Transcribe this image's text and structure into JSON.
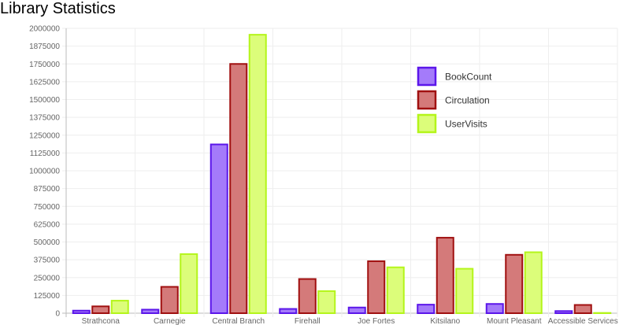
{
  "page": {
    "title": "Library Statistics"
  },
  "chart_data": {
    "type": "bar",
    "title": "Library Statistics",
    "xlabel": "",
    "ylabel": "",
    "ylim": [
      0,
      2000000
    ],
    "yticks": [
      0,
      125000,
      250000,
      375000,
      500000,
      625000,
      750000,
      875000,
      1000000,
      1125000,
      1250000,
      1375000,
      1500000,
      1625000,
      1750000,
      1875000,
      2000000
    ],
    "categories": [
      "Strathcona",
      "Carnegie",
      "Central Branch",
      "Firehall",
      "Joe Fortes",
      "Kitsilano",
      "Mount Pleasant",
      "Accessible Services"
    ],
    "grid": true,
    "legend_position": "top-right",
    "series": [
      {
        "name": "BookCount",
        "fill": "#a47bfa",
        "stroke": "#5b16ea",
        "values": [
          18000,
          25000,
          1185000,
          30000,
          40000,
          60000,
          65000,
          15000
        ]
      },
      {
        "name": "Circulation",
        "fill": "#d47a7a",
        "stroke": "#a01010",
        "values": [
          48000,
          185000,
          1750000,
          240000,
          365000,
          530000,
          410000,
          58000
        ]
      },
      {
        "name": "UserVisits",
        "fill": "#dcfd7a",
        "stroke": "#b4f51a",
        "values": [
          88000,
          415000,
          1955000,
          155000,
          322000,
          312000,
          428000,
          2000
        ]
      }
    ]
  }
}
